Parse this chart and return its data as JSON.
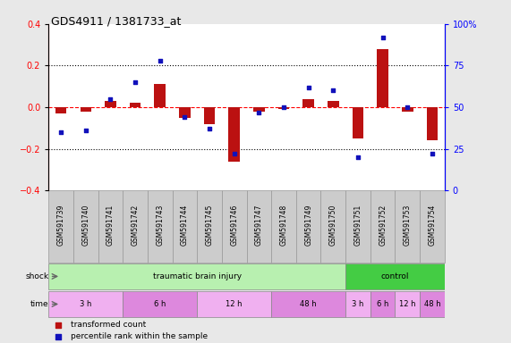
{
  "title": "GDS4911 / 1381733_at",
  "samples": [
    "GSM591739",
    "GSM591740",
    "GSM591741",
    "GSM591742",
    "GSM591743",
    "GSM591744",
    "GSM591745",
    "GSM591746",
    "GSM591747",
    "GSM591748",
    "GSM591749",
    "GSM591750",
    "GSM591751",
    "GSM591752",
    "GSM591753",
    "GSM591754"
  ],
  "red_values": [
    -0.03,
    -0.02,
    0.03,
    0.02,
    0.11,
    -0.05,
    -0.08,
    -0.26,
    -0.02,
    -0.01,
    0.04,
    0.03,
    -0.15,
    0.28,
    -0.02,
    -0.16
  ],
  "blue_values": [
    35,
    36,
    55,
    65,
    78,
    44,
    37,
    22,
    47,
    50,
    62,
    60,
    20,
    92,
    50,
    22
  ],
  "ylim_left": [
    -0.4,
    0.4
  ],
  "ylim_right": [
    0,
    100
  ],
  "yticks_left": [
    -0.4,
    -0.2,
    0.0,
    0.2,
    0.4
  ],
  "yticks_right": [
    0,
    25,
    50,
    75,
    100
  ],
  "ytick_labels_right": [
    "0",
    "25",
    "50",
    "75",
    "100%"
  ],
  "shock_groups": [
    {
      "label": "traumatic brain injury",
      "start": 0,
      "end": 12,
      "color": "#b8f0b0"
    },
    {
      "label": "control",
      "start": 12,
      "end": 16,
      "color": "#44cc44"
    }
  ],
  "time_groups": [
    {
      "label": "3 h",
      "start": 0,
      "end": 3,
      "color": "#f0b0f0"
    },
    {
      "label": "6 h",
      "start": 3,
      "end": 6,
      "color": "#dd88dd"
    },
    {
      "label": "12 h",
      "start": 6,
      "end": 9,
      "color": "#f0b0f0"
    },
    {
      "label": "48 h",
      "start": 9,
      "end": 12,
      "color": "#dd88dd"
    },
    {
      "label": "3 h",
      "start": 12,
      "end": 13,
      "color": "#f0b0f0"
    },
    {
      "label": "6 h",
      "start": 13,
      "end": 14,
      "color": "#dd88dd"
    },
    {
      "label": "12 h",
      "start": 14,
      "end": 15,
      "color": "#f0b0f0"
    },
    {
      "label": "48 h",
      "start": 15,
      "end": 16,
      "color": "#dd88dd"
    }
  ],
  "bar_color": "#bb1111",
  "dot_color": "#1111bb",
  "background_color": "#e8e8e8",
  "plot_bg": "#ffffff",
  "label_box_color": "#cccccc",
  "label_box_edge": "#999999",
  "legend_items": [
    "transformed count",
    "percentile rank within the sample"
  ]
}
